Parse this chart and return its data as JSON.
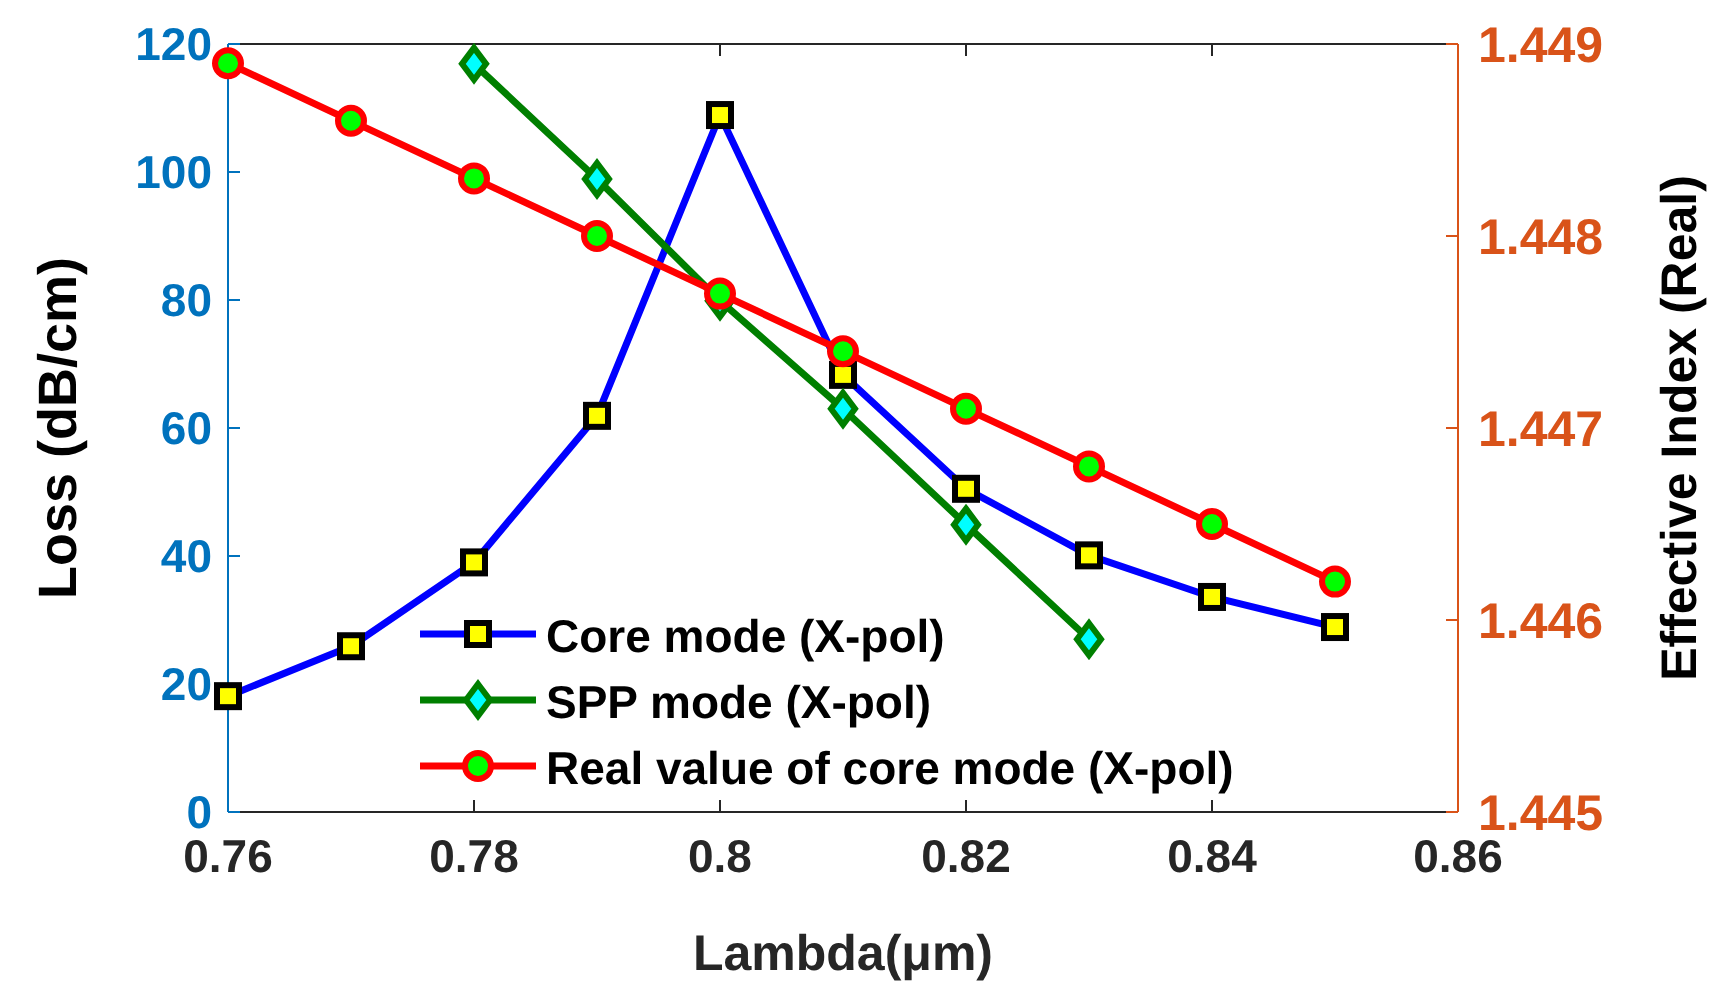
{
  "chart_data": {
    "type": "line",
    "xlabel": "Lambda(μm)",
    "ylabel": "Loss (dB/cm)",
    "y2label": "Effective Index (Real)",
    "xlim": [
      0.76,
      0.86
    ],
    "xticks": [
      0.76,
      0.78,
      {
        "value": 0.8,
        "label": "0.8"
      },
      0.82,
      0.84,
      0.86
    ],
    "ylim": [
      0,
      120
    ],
    "yticks": [
      0,
      20,
      40,
      60,
      80,
      100,
      120
    ],
    "y2lim": [
      1.445,
      1.449
    ],
    "y2ticks": [
      1.445,
      1.446,
      1.447,
      1.448,
      1.449
    ],
    "legend": "bottom",
    "grid": false,
    "series": [
      {
        "name": "Core mode (X-pol)",
        "color": "#0000ff",
        "marker": "square",
        "x": [
          0.76,
          0.77,
          0.78,
          0.79,
          0.8,
          0.81,
          0.82,
          0.83,
          0.84,
          0.85
        ],
        "values": [
          18.1,
          25.9,
          39,
          61.9,
          108.9,
          68.3,
          50.5,
          40.1,
          33.6,
          28.9
        ]
      },
      {
        "name": "SPP mode (X-pol)",
        "color": "#007f00",
        "marker": "diamond",
        "x": [
          0.78,
          0.79,
          0.8,
          0.81,
          0.82,
          0.83
        ],
        "values": [
          116.9,
          98.9,
          79.9,
          63,
          44.9,
          27
        ]
      },
      {
        "name": "Real value of core mode (X-pol)",
        "color": "#ff0000",
        "marker": "circle",
        "axis": "y2",
        "x": [
          0.76,
          0.77,
          0.78,
          0.79,
          0.8,
          0.81,
          0.82,
          0.83,
          0.84,
          0.85
        ],
        "values": [
          1.4489,
          1.4486,
          1.4483,
          1.448,
          1.4477,
          1.4474,
          1.4471,
          1.4468,
          1.4465,
          1.4462
        ]
      }
    ]
  }
}
